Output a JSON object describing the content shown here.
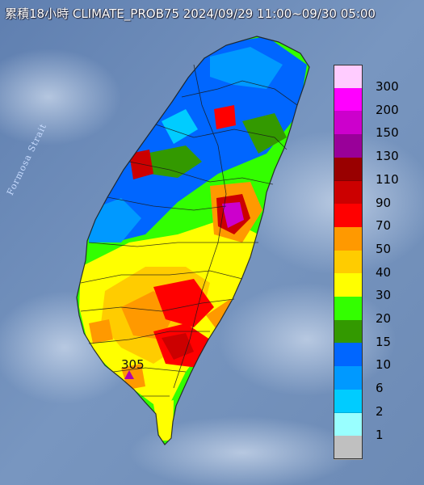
{
  "title": "累積18小時 CLIMATE_PROB75 2024/09/29 11:00~09/30 05:00",
  "water_label": "Formosa Strait",
  "max_label": "305",
  "legend": [
    {
      "label": "300",
      "color": "#ffccff"
    },
    {
      "label": "200",
      "color": "#ff00ff"
    },
    {
      "label": "150",
      "color": "#cc00cc"
    },
    {
      "label": "130",
      "color": "#990099"
    },
    {
      "label": "110",
      "color": "#990000"
    },
    {
      "label": "90",
      "color": "#cc0000"
    },
    {
      "label": "70",
      "color": "#ff0000"
    },
    {
      "label": "50",
      "color": "#ff9900"
    },
    {
      "label": "40",
      "color": "#ffcc00"
    },
    {
      "label": "30",
      "color": "#ffff00"
    },
    {
      "label": "20",
      "color": "#33ff00"
    },
    {
      "label": "15",
      "color": "#339900"
    },
    {
      "label": "10",
      "color": "#0066ff"
    },
    {
      "label": "6",
      "color": "#0099ff"
    },
    {
      "label": "2",
      "color": "#00ccff"
    },
    {
      "label": "1",
      "color": "#99ffff"
    },
    {
      "label": "",
      "color": "#c0c0c0"
    }
  ]
}
